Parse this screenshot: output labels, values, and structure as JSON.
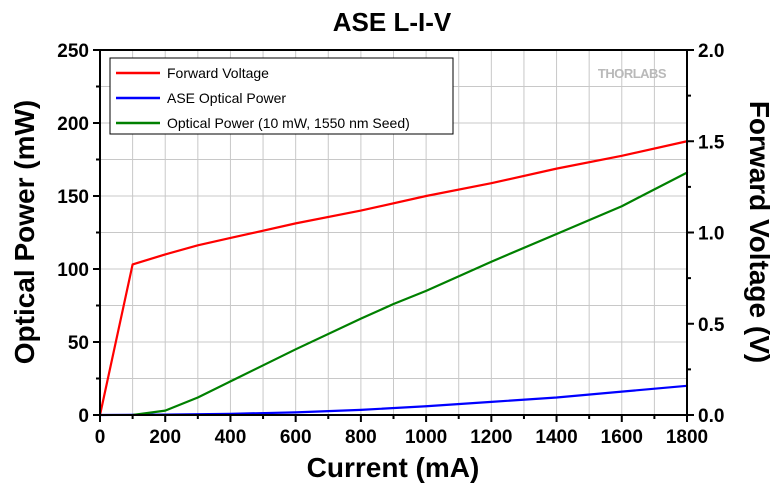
{
  "chart_data": {
    "type": "line",
    "title": "ASE L-I-V",
    "xlabel": "Current (mA)",
    "ylabel": "Optical Power (mW)",
    "y2label": "Forward Voltage (V)",
    "xlim": [
      0,
      1800
    ],
    "ylim": [
      0,
      250
    ],
    "y2lim": [
      0,
      2.0
    ],
    "xticks": [
      "0",
      "200",
      "400",
      "600",
      "800",
      "1000",
      "1200",
      "1400",
      "1600",
      "1800"
    ],
    "yticks": [
      "0",
      "50",
      "100",
      "150",
      "200",
      "250"
    ],
    "y2ticks": [
      "0.0",
      "0.5",
      "1.0",
      "1.5",
      "2.0"
    ],
    "grid": true,
    "legend_position": "top-left",
    "logo_text": "THORLABS",
    "series": [
      {
        "name": "Forward Voltage",
        "color": "#ff0000",
        "axis": "right",
        "x": [
          0,
          100,
          200,
          300,
          400,
          600,
          800,
          1000,
          1200,
          1400,
          1600,
          1800
        ],
        "values": [
          0.0,
          0.825,
          0.88,
          0.93,
          0.97,
          1.05,
          1.12,
          1.2,
          1.27,
          1.35,
          1.42,
          1.5
        ]
      },
      {
        "name": "ASE Optical Power",
        "color": "#0000ff",
        "axis": "left",
        "x": [
          0,
          200,
          400,
          600,
          800,
          1000,
          1200,
          1400,
          1600,
          1800
        ],
        "values": [
          0,
          0.3,
          0.8,
          1.8,
          3.5,
          6,
          9,
          12,
          16,
          20
        ]
      },
      {
        "name": "Optical Power (10 mW, 1550 nm Seed)",
        "color": "#008000",
        "axis": "left",
        "x": [
          100,
          200,
          300,
          400,
          600,
          800,
          900,
          1000,
          1200,
          1400,
          1600,
          1800
        ],
        "values": [
          0,
          3,
          12,
          23,
          45,
          66,
          76,
          85,
          105,
          124,
          143,
          166
        ]
      }
    ]
  }
}
